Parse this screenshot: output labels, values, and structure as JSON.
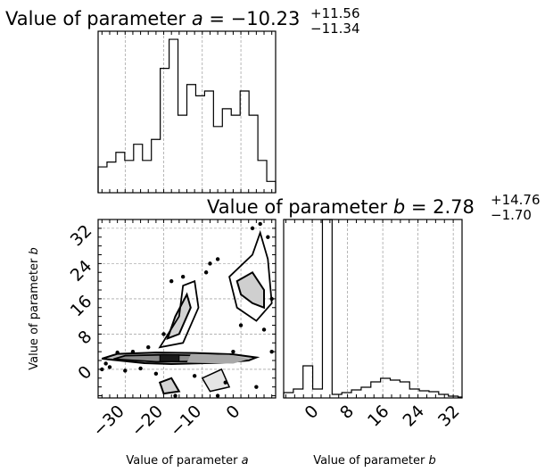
{
  "chart_data": [
    {
      "type": "histogram",
      "panel": "marginal-a",
      "title": {
        "main": "Value of parameter ",
        "var": "a",
        "eq": " = −10.23",
        "sup": "+11.56",
        "sub": "−11.34"
      },
      "xlim": [
        -37,
        9
      ],
      "ylim": [
        0,
        1
      ],
      "bins": [
        [
          -37,
          -34.7,
          0.16
        ],
        [
          -34.7,
          -32.4,
          0.19
        ],
        [
          -32.4,
          -30.1,
          0.25
        ],
        [
          -30.1,
          -27.8,
          0.2
        ],
        [
          -27.8,
          -25.5,
          0.3
        ],
        [
          -25.5,
          -23.2,
          0.2
        ],
        [
          -23.2,
          -20.9,
          0.33
        ],
        [
          -20.9,
          -18.6,
          0.77
        ],
        [
          -18.6,
          -16.3,
          0.95
        ],
        [
          -16.3,
          -14.0,
          0.48
        ],
        [
          -14.0,
          -11.7,
          0.67
        ],
        [
          -11.7,
          -9.4,
          0.6
        ],
        [
          -9.4,
          -7.1,
          0.63
        ],
        [
          -7.1,
          -4.8,
          0.41
        ],
        [
          -4.8,
          -2.5,
          0.52
        ],
        [
          -2.5,
          -0.2,
          0.48
        ],
        [
          -0.2,
          2.1,
          0.63
        ],
        [
          2.1,
          4.4,
          0.48
        ],
        [
          4.4,
          6.7,
          0.2
        ],
        [
          6.7,
          9.0,
          0.07
        ]
      ],
      "xgrid": [
        -30,
        -20,
        -10,
        0
      ]
    },
    {
      "type": "contour",
      "panel": "joint-a-b",
      "xlim": [
        -37,
        9
      ],
      "ylim": [
        -6.5,
        34
      ],
      "xticks": [
        -30,
        -20,
        -10,
        0
      ],
      "xticklabels": [
        "−30",
        "−20",
        "−10",
        "0"
      ],
      "yticks": [
        0,
        8,
        16,
        24,
        32
      ],
      "yticklabels": [
        "0",
        "8",
        "16",
        "24",
        "32"
      ],
      "xlabel": {
        "text": "Value of parameter ",
        "var": "a"
      },
      "ylabel": {
        "text": "Value of parameter ",
        "var": "b"
      }
    },
    {
      "type": "histogram",
      "panel": "marginal-b",
      "title": {
        "main": "Value of parameter ",
        "var": "b",
        "eq": " = 2.78",
        "sup": "+14.76",
        "sub": "−1.70"
      },
      "xlim": [
        -6.5,
        34
      ],
      "ylim": [
        0,
        1
      ],
      "bins": [
        [
          -6.5,
          -4.3,
          0.03
        ],
        [
          -4.3,
          -2.1,
          0.05
        ],
        [
          -2.1,
          0.1,
          0.18
        ],
        [
          0.1,
          2.3,
          0.05
        ],
        [
          2.3,
          4.5,
          1.0
        ],
        [
          4.5,
          6.7,
          0.02
        ],
        [
          6.7,
          8.9,
          0.03
        ],
        [
          8.9,
          11.1,
          0.045
        ],
        [
          11.1,
          13.3,
          0.06
        ],
        [
          13.3,
          15.5,
          0.09
        ],
        [
          15.5,
          17.7,
          0.11
        ],
        [
          17.7,
          19.9,
          0.1
        ],
        [
          19.9,
          22.1,
          0.09
        ],
        [
          22.1,
          24.3,
          0.05
        ],
        [
          24.3,
          26.5,
          0.04
        ],
        [
          26.5,
          28.7,
          0.035
        ],
        [
          28.7,
          30.9,
          0.02
        ],
        [
          30.9,
          33.1,
          0.01
        ],
        [
          33.1,
          34.0,
          0.005
        ]
      ],
      "xticks": [
        0,
        8,
        16,
        24,
        32
      ],
      "xticklabels": [
        "0",
        "8",
        "16",
        "24",
        "32"
      ],
      "xlabel": {
        "text": "Value of parameter ",
        "var": "b"
      }
    }
  ]
}
